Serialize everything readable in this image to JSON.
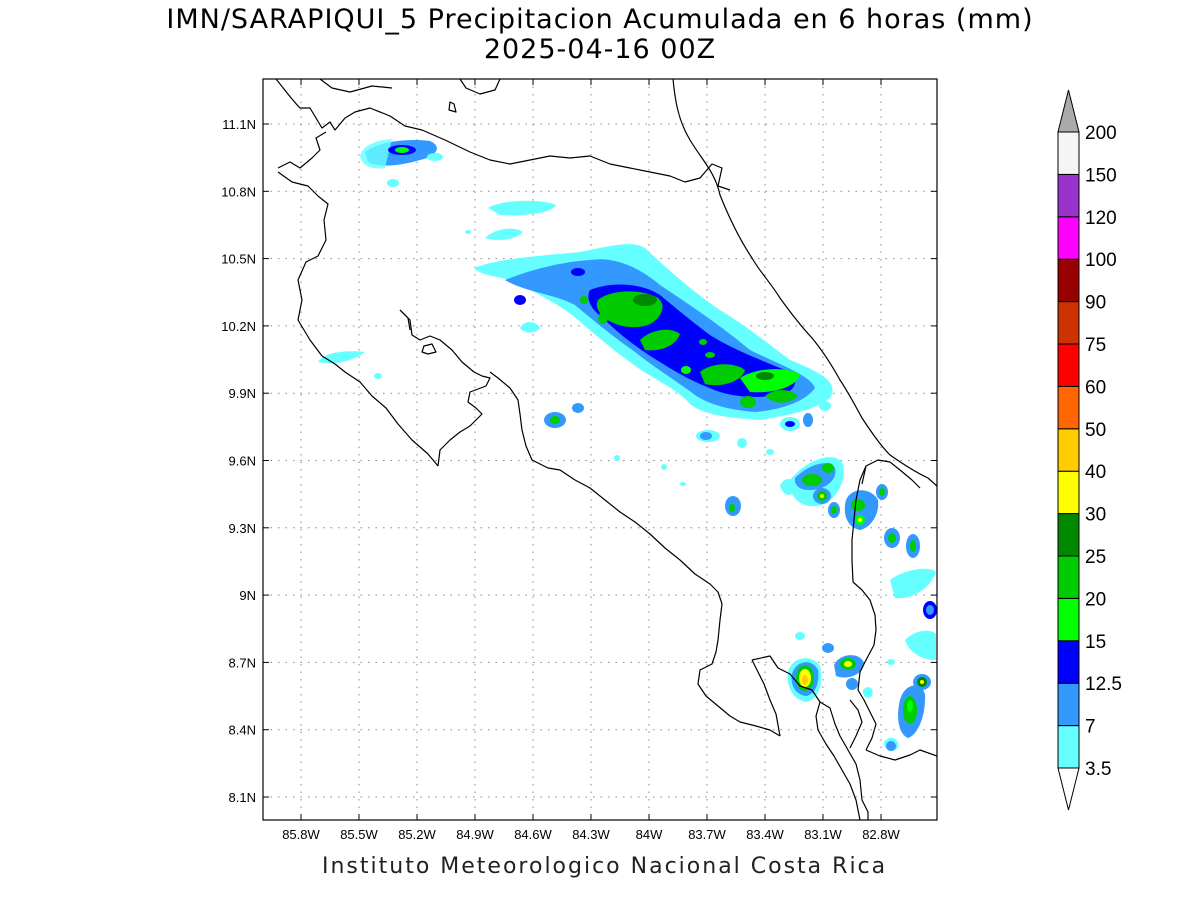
{
  "title": {
    "line1": "IMN/SARAPIQUI_5 Precipitacion Acumulada en 6 horas (mm)",
    "line2": "2025-04-16 00Z"
  },
  "footer": "Instituto Meteorologico Nacional Costa Rica",
  "map": {
    "lon_range": [
      -86.0,
      -82.5
    ],
    "lat_range": [
      8.0,
      11.2
    ],
    "lon_ticks": [
      {
        "value": -85.8,
        "label": "85.8W"
      },
      {
        "value": -85.5,
        "label": "85.5W"
      },
      {
        "value": -85.2,
        "label": "85.2W"
      },
      {
        "value": -84.9,
        "label": "84.9W"
      },
      {
        "value": -84.6,
        "label": "84.6W"
      },
      {
        "value": -84.3,
        "label": "84.3W"
      },
      {
        "value": -84.0,
        "label": "84W"
      },
      {
        "value": -83.7,
        "label": "83.7W"
      },
      {
        "value": -83.4,
        "label": "83.4W"
      },
      {
        "value": -83.1,
        "label": "83.1W"
      },
      {
        "value": -82.8,
        "label": "82.8W"
      }
    ],
    "lat_ticks": [
      {
        "value": 11.1,
        "label": "11.1N"
      },
      {
        "value": 10.8,
        "label": "10.8N"
      },
      {
        "value": 10.5,
        "label": "10.5N"
      },
      {
        "value": 10.2,
        "label": "10.2N"
      },
      {
        "value": 9.9,
        "label": "9.9N"
      },
      {
        "value": 9.6,
        "label": "9.6N"
      },
      {
        "value": 9.3,
        "label": "9.3N"
      },
      {
        "value": 9.0,
        "label": "9N"
      },
      {
        "value": 8.7,
        "label": "8.7N"
      },
      {
        "value": 8.4,
        "label": "8.4N"
      },
      {
        "value": 8.1,
        "label": "8.1N"
      }
    ],
    "grid": true,
    "coastline_color": "#000000"
  },
  "colorbar": {
    "levels": [
      {
        "label": "3.5",
        "color": "#ffffff"
      },
      {
        "label": "7",
        "color": "#66ffff"
      },
      {
        "label": "12.5",
        "color": "#3399ff"
      },
      {
        "label": "15",
        "color": "#0000ff"
      },
      {
        "label": "20",
        "color": "#00ff00"
      },
      {
        "label": "25",
        "color": "#00cc00"
      },
      {
        "label": "30",
        "color": "#008800"
      },
      {
        "label": "40",
        "color": "#ffff00"
      },
      {
        "label": "50",
        "color": "#ffcc00"
      },
      {
        "label": "60",
        "color": "#ff6600"
      },
      {
        "label": "75",
        "color": "#ff0000"
      },
      {
        "label": "90",
        "color": "#cc3300"
      },
      {
        "label": "100",
        "color": "#990000"
      },
      {
        "label": "120",
        "color": "#ff00ff"
      },
      {
        "label": "150",
        "color": "#9933cc"
      },
      {
        "label": "200",
        "color": "#f5f5f5"
      }
    ],
    "top_arrow_color": "#aaaaaa",
    "bottom_arrow_color": "#ffffff"
  }
}
